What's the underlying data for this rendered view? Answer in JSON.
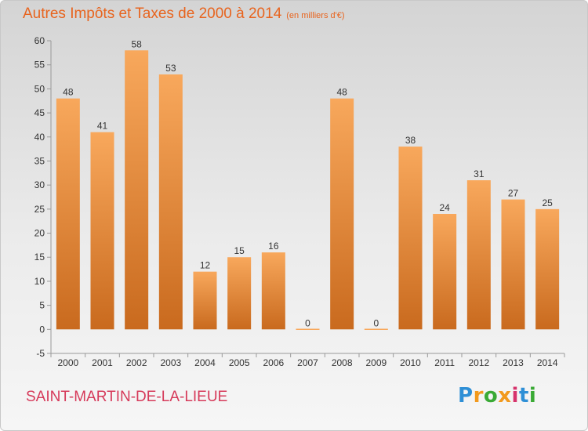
{
  "header": {
    "title": "Autres Impôts et Taxes de 2000 à 2014",
    "subtitle": "(en milliers d'€)"
  },
  "footer": {
    "commune": "SAINT-MARTIN-DE-LA-LIEUE",
    "logo": "Proxiti"
  },
  "colors": {
    "title": "#e8641e",
    "commune": "#d63a5a",
    "bar_top": "#f8a85c",
    "bar_bottom": "#c96a1e",
    "logo": [
      "#2e8fd6",
      "#f29a1e",
      "#3aaa35",
      "#f29a1e",
      "#d6336c",
      "#2e8fd6",
      "#3aaa35"
    ]
  },
  "chart_data": {
    "type": "bar",
    "title": "Autres Impôts et Taxes de 2000 à 2014",
    "subtitle": "(en milliers d'€)",
    "xlabel": "",
    "ylabel": "",
    "categories": [
      "2000",
      "2001",
      "2002",
      "2003",
      "2004",
      "2005",
      "2006",
      "2007",
      "2008",
      "2009",
      "2010",
      "2011",
      "2012",
      "2013",
      "2014"
    ],
    "values": [
      48,
      41,
      58,
      53,
      12,
      15,
      16,
      0,
      48,
      0,
      38,
      24,
      31,
      27,
      25
    ],
    "ylim": [
      -5,
      60
    ],
    "yticks": [
      -5,
      0,
      5,
      10,
      15,
      20,
      25,
      30,
      35,
      40,
      45,
      50,
      55,
      60
    ],
    "grid": false,
    "legend": "none"
  }
}
